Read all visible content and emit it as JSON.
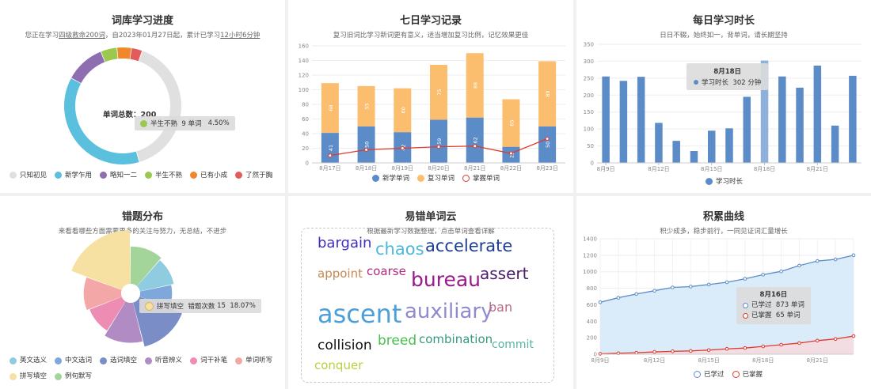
{
  "panels": {
    "vocab": {
      "title": "词库学习进度",
      "sub_pre": "您正在学习",
      "sub_link1": "四级救命200词",
      "sub_mid": "，自2023年01月27日起，累计已学习",
      "sub_link2": "12小时6分钟",
      "center_label": "单词总数：200",
      "tooltip": {
        "name": "半生不熟",
        "count": "9 单词",
        "pct": "4.50%"
      }
    },
    "seven": {
      "title": "七日学习记录",
      "sub": "复习旧词比学习新词更有意义，适当增加复习比例，记忆效果更佳"
    },
    "daily": {
      "title": "每日学习时长",
      "sub": "日日不辍，始终如一，背单词，请长期坚持",
      "tooltip": {
        "date": "8月18日",
        "name": "学习时长",
        "value": "302 分钟"
      }
    },
    "errors": {
      "title": "错题分布",
      "sub": "来看看哪些方面需要更多的关注与努力，无总结，不进步",
      "tooltip": {
        "name": "拼写填空",
        "label": "错题次数",
        "count": "15",
        "pct": "18.07%"
      }
    },
    "cloud": {
      "title": "易错单词云",
      "sub": "根据最新学习数据整理，点击单词查看详解"
    },
    "accum": {
      "title": "积累曲线",
      "sub": "积少成多，稳步前行，一同见证词汇量增长",
      "tooltip": {
        "date": "8月16日",
        "learned_name": "已学过",
        "learned_value": "873 单词",
        "mastered_name": "已掌握",
        "mastered_value": "65 单词"
      }
    }
  },
  "chart_data": [
    {
      "type": "pie",
      "title": "词库学习进度",
      "center_label": "单词总数：200",
      "categories": [
        "只知初见",
        "新学乍用",
        "略知一二",
        "半生不熟",
        "已有小成",
        "了然于胸"
      ],
      "values": [
        80,
        75,
        22,
        9,
        8,
        6
      ],
      "colors": [
        "#e0e0e0",
        "#5bc0de",
        "#8e6db0",
        "#9bc94f",
        "#f0882b",
        "#e35b5b"
      ]
    },
    {
      "type": "bar",
      "title": "七日学习记录",
      "categories": [
        "8月17日",
        "8月18日",
        "8月19日",
        "8月20日",
        "8月21日",
        "8月22日",
        "8月23日"
      ],
      "series": [
        {
          "name": "新学单词",
          "values": [
            41,
            50,
            42,
            59,
            62,
            22,
            50
          ],
          "color": "#5b8cc8"
        },
        {
          "name": "复习单词",
          "values": [
            68,
            55,
            60,
            75,
            88,
            65,
            89
          ],
          "color": "#fbbd6e"
        },
        {
          "name": "掌握单词",
          "values": [
            10,
            18,
            20,
            22,
            23,
            13,
            33
          ],
          "color": "#e0392e"
        }
      ],
      "ylim": [
        0,
        160
      ],
      "yticks": [
        0,
        20,
        40,
        60,
        80,
        100,
        120,
        140,
        160
      ]
    },
    {
      "type": "bar",
      "title": "每日学习时长",
      "x": [
        9,
        10,
        11,
        12,
        13,
        14,
        15,
        16,
        17,
        18,
        19,
        20,
        21,
        22,
        23
      ],
      "xticks": [
        "8月9日",
        "8月12日",
        "8月15日",
        "8月18日",
        "8月21日"
      ],
      "series": [
        {
          "name": "学习时长",
          "values": [
            255,
            242,
            254,
            118,
            65,
            35,
            95,
            102,
            195,
            302,
            255,
            222,
            287,
            110,
            257
          ],
          "color": "#5b8cc8"
        }
      ],
      "ylim": [
        0,
        350
      ],
      "yticks": [
        0,
        50,
        100,
        150,
        200,
        250,
        300,
        350
      ]
    },
    {
      "type": "pie",
      "title": "错题分布",
      "categories": [
        "英文选义",
        "中文选词",
        "选词填空",
        "听音辨义",
        "词干补笔",
        "单词听写",
        "拼写填空",
        "例句默写"
      ],
      "values": [
        8,
        7,
        12,
        10,
        8,
        9,
        15,
        9
      ],
      "colors": [
        "#8fcce0",
        "#7ea7dc",
        "#7b8dc6",
        "#b08bc4",
        "#ed8db4",
        "#f4a7a7",
        "#f6e0a2",
        "#a3d59a"
      ],
      "tooltip": {
        "name": "拼写填空",
        "count": 15,
        "pct": "18.07%"
      }
    },
    {
      "type": "line",
      "title": "积累曲线",
      "x": [
        9,
        10,
        11,
        12,
        13,
        14,
        15,
        16,
        17,
        18,
        19,
        20,
        21,
        22,
        23
      ],
      "xticks": [
        "8月9日",
        "8月12日",
        "8月15日",
        "8月18日",
        "8月21日"
      ],
      "series": [
        {
          "name": "已学过",
          "values": [
            630,
            685,
            730,
            770,
            810,
            820,
            845,
            873,
            915,
            965,
            1005,
            1075,
            1130,
            1150,
            1200
          ],
          "color": "#5b8cc8"
        },
        {
          "name": "已掌握",
          "values": [
            5,
            12,
            18,
            28,
            35,
            40,
            50,
            65,
            75,
            95,
            115,
            135,
            165,
            185,
            220
          ],
          "color": "#e0392e"
        }
      ],
      "ylim": [
        0,
        1400
      ],
      "yticks": [
        0,
        200,
        400,
        600,
        800,
        1000,
        1200,
        1400
      ]
    }
  ],
  "word_cloud": {
    "words": [
      {
        "text": "bargain",
        "size": 18,
        "color": "#3f2ec0"
      },
      {
        "text": "chaos",
        "size": 21,
        "color": "#4db8d8"
      },
      {
        "text": "accelerate",
        "size": 21,
        "color": "#1d3f8f"
      },
      {
        "text": "appoint",
        "size": 15,
        "color": "#c88850"
      },
      {
        "text": "coarse",
        "size": 15,
        "color": "#b02a7c"
      },
      {
        "text": "bureau",
        "size": 25,
        "color": "#9a1a8c"
      },
      {
        "text": "assert",
        "size": 20,
        "color": "#4a1d66"
      },
      {
        "text": "ascent",
        "size": 32,
        "color": "#4c9fd8"
      },
      {
        "text": "auxiliary",
        "size": 26,
        "color": "#8f8ad0"
      },
      {
        "text": "ban",
        "size": 16,
        "color": "#b86a88"
      },
      {
        "text": "collision",
        "size": 17,
        "color": "#111111"
      },
      {
        "text": "breed",
        "size": 17,
        "color": "#46c04e"
      },
      {
        "text": "combination",
        "size": 15,
        "color": "#34987e"
      },
      {
        "text": "commit",
        "size": 14,
        "color": "#58b4a4"
      },
      {
        "text": "conquer",
        "size": 15,
        "color": "#b8d040"
      }
    ]
  }
}
